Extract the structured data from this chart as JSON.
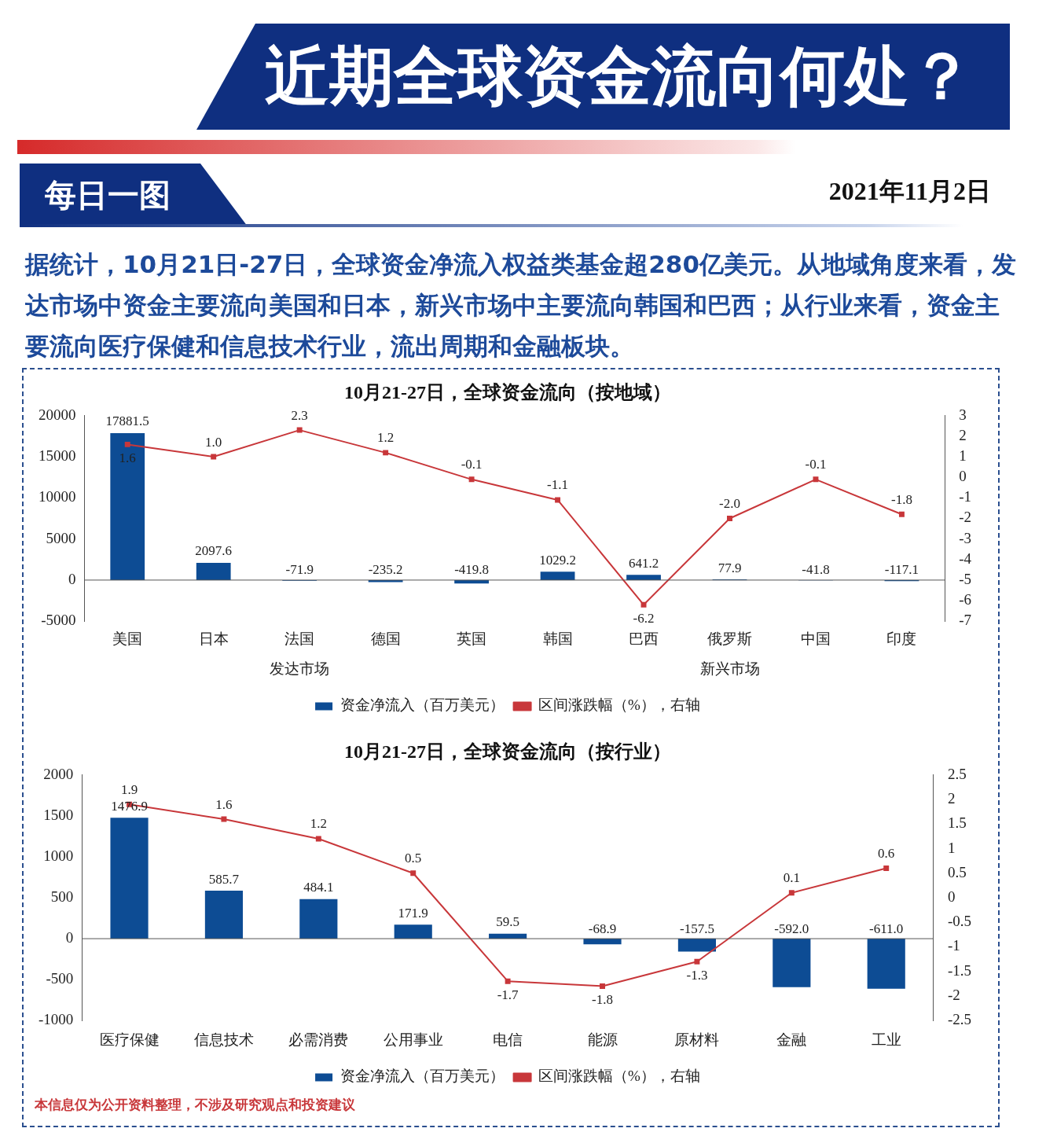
{
  "chart_data": [
    {
      "type": "bar",
      "title": "10月21-27日，全球资金流向（按地域）",
      "categories": [
        "美国",
        "日本",
        "法国",
        "德国",
        "英国",
        "韩国",
        "巴西",
        "俄罗斯",
        "中国",
        "印度"
      ],
      "series": [
        {
          "name": "资金净流入（百万美元）",
          "type": "bar",
          "color": "#0d4c94",
          "values": [
            17881.5,
            2097.6,
            -71.9,
            -235.2,
            -419.8,
            1029.2,
            641.2,
            77.9,
            -41.8,
            -117.1
          ],
          "value_labels": [
            "17881.5",
            "2097.6",
            "-71.9",
            "-235.2",
            "-419.8",
            "1029.2",
            "641.2",
            "77.9",
            "-41.8",
            "-117.1"
          ]
        },
        {
          "name": "区间涨跌幅（%），右轴",
          "type": "line",
          "axis": "y2",
          "color": "#c8373a",
          "values": [
            1.6,
            1.0,
            2.3,
            1.2,
            -0.1,
            -1.1,
            -6.2,
            -2.0,
            -0.1,
            -1.8
          ],
          "value_labels": [
            "1.6",
            "1.0",
            "2.3",
            "1.2",
            "-0.1",
            "-1.1",
            "-6.2",
            "-2.0",
            "-0.1",
            "-1.8"
          ]
        }
      ],
      "ylim": [
        -5000,
        20000
      ],
      "yticks": [
        -5000,
        0,
        5000,
        10000,
        15000,
        20000
      ],
      "y2lim": [
        -7,
        3
      ],
      "y2ticks": [
        -7,
        -6,
        -5,
        -4,
        -3,
        -2,
        -1,
        0,
        1,
        2,
        3
      ],
      "legend": "bottom",
      "marker": "square",
      "annotations": [
        "近期全球资金流向何处？",
        "每日一图",
        "2021年11月2日",
        "据统计，10月21日-27日，全球资金净流入权益类基金超280亿美元。从地域角度来看，发达市场中资金主要流向美国和日本，新兴市场中主要流向韩国和巴西；从行业来看，资金主要流向医疗保健和信息技术行业，流出周期和金融板块。",
        "发达市场",
        "新兴市场"
      ]
    },
    {
      "type": "bar",
      "title": "10月21-27日，全球资金流向（按行业）",
      "categories": [
        "医疗保健",
        "信息技术",
        "必需消费",
        "公用事业",
        "电信",
        "能源",
        "原材料",
        "金融",
        "工业"
      ],
      "series": [
        {
          "name": "资金净流入（百万美元）",
          "type": "bar",
          "color": "#0d4c94",
          "values": [
            1476.9,
            585.7,
            484.1,
            171.9,
            59.5,
            -68.9,
            -157.5,
            -592.0,
            -611.0
          ],
          "value_labels": [
            "1476.9",
            "585.7",
            "484.1",
            "171.9",
            "59.5",
            "-68.9",
            "-157.5",
            "-592.0",
            "-611.0"
          ]
        },
        {
          "name": "区间涨跌幅（%），右轴",
          "type": "line",
          "axis": "y2",
          "color": "#c8373a",
          "values": [
            1.9,
            1.6,
            1.2,
            0.5,
            -1.7,
            -1.8,
            -1.3,
            0.1,
            0.6
          ],
          "value_labels": [
            "1.9",
            "1.6",
            "1.2",
            "0.5",
            "-1.7",
            "-1.8",
            "-1.3",
            "0.1",
            "0.6"
          ]
        }
      ],
      "ylim": [
        -1000,
        2000
      ],
      "yticks": [
        -1000,
        -500,
        0,
        500,
        1000,
        1500,
        2000
      ],
      "y2lim": [
        -2.5,
        2.5
      ],
      "y2ticks": [
        -2.5,
        -2,
        -1.5,
        -1,
        -0.5,
        0,
        0.5,
        1,
        1.5,
        2,
        2.5
      ],
      "legend": "bottom",
      "marker": "square",
      "annotations": [
        "本信息仅为公开资料整理，不涉及研究观点和投资建议"
      ]
    }
  ]
}
